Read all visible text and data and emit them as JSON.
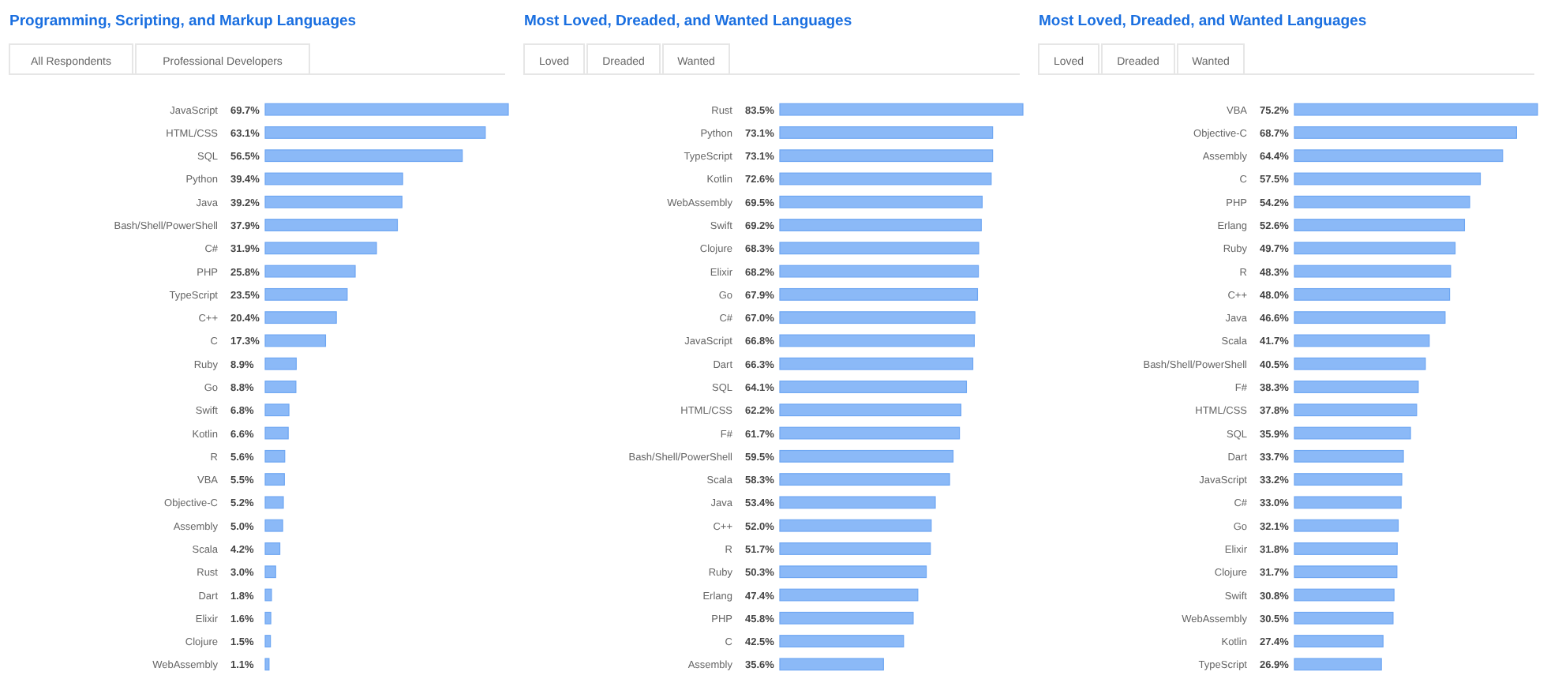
{
  "chart_data": [
    {
      "type": "bar",
      "orientation": "horizontal",
      "title": "Programming, Scripting, and Markup Languages",
      "annotations": [
        "All Respondents",
        "Professional Developers"
      ],
      "categories": [
        "JavaScript",
        "HTML/CSS",
        "SQL",
        "Python",
        "Java",
        "Bash/Shell/PowerShell",
        "C#",
        "PHP",
        "TypeScript",
        "C++",
        "C",
        "Ruby",
        "Go",
        "Swift",
        "Kotlin",
        "R",
        "VBA",
        "Objective-C",
        "Assembly",
        "Scala",
        "Rust",
        "Dart",
        "Elixir",
        "Clojure",
        "WebAssembly"
      ],
      "values": [
        69.7,
        63.1,
        56.5,
        39.4,
        39.2,
        37.9,
        31.9,
        25.8,
        23.5,
        20.4,
        17.3,
        8.9,
        8.8,
        6.8,
        6.6,
        5.6,
        5.5,
        5.2,
        5.0,
        4.2,
        3.0,
        1.8,
        1.6,
        1.5,
        1.1
      ],
      "value_labels": [
        "69.7%",
        "63.1%",
        "56.5%",
        "39.4%",
        "39.2%",
        "37.9%",
        "31.9%",
        "25.8%",
        "23.5%",
        "20.4%",
        "17.3%",
        "8.9%",
        "8.8%",
        "6.8%",
        "6.6%",
        "5.6%",
        "5.5%",
        "5.2%",
        "5.0%",
        "4.2%",
        "3.0%",
        "1.8%",
        "1.6%",
        "1.5%",
        "1.1%"
      ],
      "color": "#8bb9f7"
    },
    {
      "type": "bar",
      "orientation": "horizontal",
      "title": "Most Loved, Dreaded, and Wanted Languages",
      "annotations": [
        "Loved",
        "Dreaded",
        "Wanted"
      ],
      "categories": [
        "Rust",
        "Python",
        "TypeScript",
        "Kotlin",
        "WebAssembly",
        "Swift",
        "Clojure",
        "Elixir",
        "Go",
        "C#",
        "JavaScript",
        "Dart",
        "SQL",
        "HTML/CSS",
        "F#",
        "Bash/Shell/PowerShell",
        "Scala",
        "Java",
        "C++",
        "R",
        "Ruby",
        "Erlang",
        "PHP",
        "C",
        "Assembly"
      ],
      "values": [
        83.5,
        73.1,
        73.1,
        72.6,
        69.5,
        69.2,
        68.3,
        68.2,
        67.9,
        67.0,
        66.8,
        66.3,
        64.1,
        62.2,
        61.7,
        59.5,
        58.3,
        53.4,
        52.0,
        51.7,
        50.3,
        47.4,
        45.8,
        42.5,
        35.6
      ],
      "value_labels": [
        "83.5%",
        "73.1%",
        "73.1%",
        "72.6%",
        "69.5%",
        "69.2%",
        "68.3%",
        "68.2%",
        "67.9%",
        "67.0%",
        "66.8%",
        "66.3%",
        "64.1%",
        "62.2%",
        "61.7%",
        "59.5%",
        "58.3%",
        "53.4%",
        "52.0%",
        "51.7%",
        "50.3%",
        "47.4%",
        "45.8%",
        "42.5%",
        "35.6%"
      ],
      "color": "#8bb9f7"
    },
    {
      "type": "bar",
      "orientation": "horizontal",
      "title": "Most Loved, Dreaded, and Wanted Languages",
      "annotations": [
        "Loved",
        "Dreaded",
        "Wanted"
      ],
      "categories": [
        "VBA",
        "Objective-C",
        "Assembly",
        "C",
        "PHP",
        "Erlang",
        "Ruby",
        "R",
        "C++",
        "Java",
        "Scala",
        "Bash/Shell/PowerShell",
        "F#",
        "HTML/CSS",
        "SQL",
        "Dart",
        "JavaScript",
        "C#",
        "Go",
        "Elixir",
        "Clojure",
        "Swift",
        "WebAssembly",
        "Kotlin",
        "TypeScript"
      ],
      "values": [
        75.2,
        68.7,
        64.4,
        57.5,
        54.2,
        52.6,
        49.7,
        48.3,
        48.0,
        46.6,
        41.7,
        40.5,
        38.3,
        37.8,
        35.9,
        33.7,
        33.2,
        33.0,
        32.1,
        31.8,
        31.7,
        30.8,
        30.5,
        27.4,
        26.9
      ],
      "value_labels": [
        "75.2%",
        "68.7%",
        "64.4%",
        "57.5%",
        "54.2%",
        "52.6%",
        "49.7%",
        "48.3%",
        "48.0%",
        "46.6%",
        "41.7%",
        "40.5%",
        "38.3%",
        "37.8%",
        "35.9%",
        "33.7%",
        "33.2%",
        "33.0%",
        "32.1%",
        "31.8%",
        "31.7%",
        "30.8%",
        "30.5%",
        "27.4%",
        "26.9%"
      ],
      "color": "#8bb9f7"
    }
  ]
}
